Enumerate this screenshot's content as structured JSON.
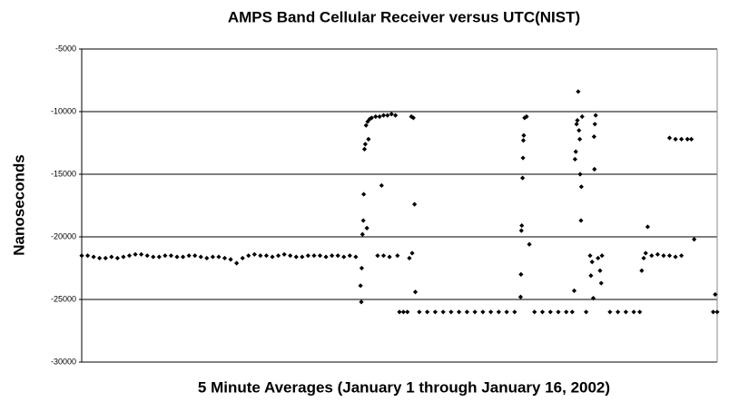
{
  "chart_data": {
    "type": "scatter",
    "title": "AMPS Band Cellular Receiver versus UTC(NIST)",
    "x_label": "5 Minute Averages (January 1 through January 16, 2002)",
    "y_label": "Nanoseconds",
    "color": "#000000",
    "grid": true,
    "xlim": [
      0,
      16
    ],
    "ylim": [
      -30000,
      -5000
    ],
    "yticks": [
      -30000,
      -25000,
      -20000,
      -15000,
      -10000,
      -5000
    ],
    "x": [
      0,
      0.15,
      0.3,
      0.45,
      0.6,
      0.75,
      0.9,
      1.05,
      1.2,
      1.35,
      1.5,
      1.65,
      1.8,
      1.95,
      2.1,
      2.25,
      2.4,
      2.55,
      2.7,
      2.85,
      3.0,
      3.15,
      3.3,
      3.45,
      3.6,
      3.75,
      3.9,
      4.05,
      4.2,
      4.35,
      4.5,
      4.65,
      4.8,
      4.95,
      5.1,
      5.25,
      5.4,
      5.55,
      5.7,
      5.85,
      6.0,
      6.15,
      6.3,
      6.45,
      6.6,
      6.75,
      6.9,
      7.04,
      7.02,
      7.05,
      7.07,
      7.09,
      7.1,
      7.12,
      7.14,
      7.16,
      7.2,
      7.25,
      7.3,
      7.18,
      7.22,
      7.4,
      7.5,
      7.6,
      7.7,
      7.8,
      7.9,
      7.55,
      7.45,
      7.6,
      7.75,
      7.95,
      8.0,
      8.1,
      8.2,
      8.3,
      8.35,
      8.38,
      8.4,
      8.25,
      8.32,
      8.5,
      8.7,
      8.9,
      9.1,
      9.3,
      9.5,
      9.7,
      9.9,
      10.1,
      10.3,
      10.5,
      10.7,
      10.9,
      11.05,
      11.06,
      11.07,
      11.08,
      11.1,
      11.11,
      11.12,
      11.13,
      11.15,
      11.2,
      11.27,
      11.4,
      11.6,
      11.8,
      12.0,
      12.2,
      12.35,
      12.4,
      12.42,
      12.44,
      12.46,
      12.48,
      12.5,
      12.52,
      12.54,
      12.55,
      12.57,
      12.58,
      12.6,
      12.8,
      12.82,
      12.85,
      12.88,
      12.9,
      12.92,
      12.94,
      12.91,
      13.0,
      13.05,
      13.08,
      13.1,
      12.7,
      13.3,
      13.5,
      13.7,
      13.9,
      14.05,
      14.1,
      14.15,
      14.2,
      14.25,
      14.35,
      14.5,
      14.65,
      14.8,
      14.95,
      15.1,
      14.8,
      14.95,
      15.1,
      15.25,
      15.35,
      15.42,
      15.95,
      15.9,
      16.0
    ],
    "values": [
      -21500,
      -21500,
      -21600,
      -21700,
      -21700,
      -21600,
      -21700,
      -21600,
      -21500,
      -21400,
      -21400,
      -21500,
      -21600,
      -21600,
      -21500,
      -21500,
      -21600,
      -21600,
      -21500,
      -21500,
      -21600,
      -21700,
      -21600,
      -21600,
      -21700,
      -21800,
      -22100,
      -21700,
      -21500,
      -21400,
      -21500,
      -21500,
      -21600,
      -21500,
      -21400,
      -21500,
      -21600,
      -21600,
      -21500,
      -21500,
      -21500,
      -21600,
      -21500,
      -21500,
      -21600,
      -21500,
      -21600,
      -25200,
      -23900,
      -22500,
      -19800,
      -18700,
      -16600,
      -13000,
      -12600,
      -11100,
      -10800,
      -10600,
      -10500,
      -19300,
      -12200,
      -10400,
      -10400,
      -10300,
      -10300,
      -10200,
      -10300,
      -15900,
      -21500,
      -21500,
      -21600,
      -21500,
      -26000,
      -26000,
      -26000,
      -10400,
      -10500,
      -17400,
      -24400,
      -21700,
      -21300,
      -26000,
      -26000,
      -26000,
      -26000,
      -26000,
      -26000,
      -26000,
      -26000,
      -26000,
      -26000,
      -26000,
      -26000,
      -26000,
      -24800,
      -23000,
      -19500,
      -19100,
      -15300,
      -13700,
      -12300,
      -11900,
      -10500,
      -10400,
      -20600,
      -26000,
      -26000,
      -26000,
      -26000,
      -26000,
      -26000,
      -24300,
      -13800,
      -13200,
      -11000,
      -10700,
      -8400,
      -11500,
      -12200,
      -15000,
      -18700,
      -16000,
      -10400,
      -21500,
      -23100,
      -22000,
      -24900,
      -12000,
      -11000,
      -10300,
      -14600,
      -21700,
      -22700,
      -23700,
      -21500,
      -26000,
      -26000,
      -26000,
      -26000,
      -26000,
      -26000,
      -22700,
      -21700,
      -21300,
      -19200,
      -21500,
      -21400,
      -21500,
      -21500,
      -21600,
      -21500,
      -12100,
      -12200,
      -12200,
      -12200,
      -12200,
      -20200,
      -24600,
      -26000,
      -26000
    ]
  }
}
